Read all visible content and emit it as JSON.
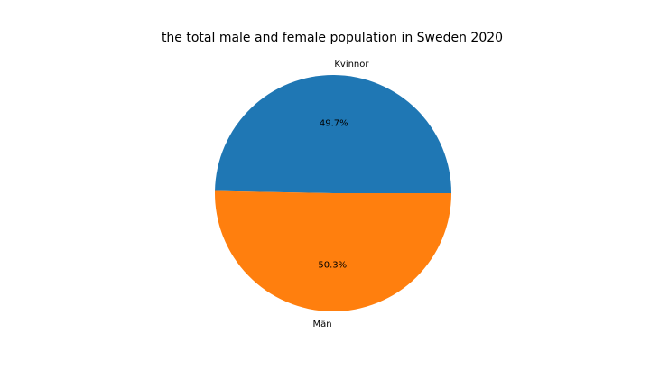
{
  "chart_data": {
    "type": "pie",
    "title": "the total male and female population in Sweden 2020",
    "labels": [
      "Kvinnor",
      "Män"
    ],
    "values": [
      49.7,
      50.3
    ],
    "percent_labels": [
      "49.7%",
      "50.3%"
    ],
    "colors": [
      "#1f77b4",
      "#ff7f0e"
    ]
  }
}
